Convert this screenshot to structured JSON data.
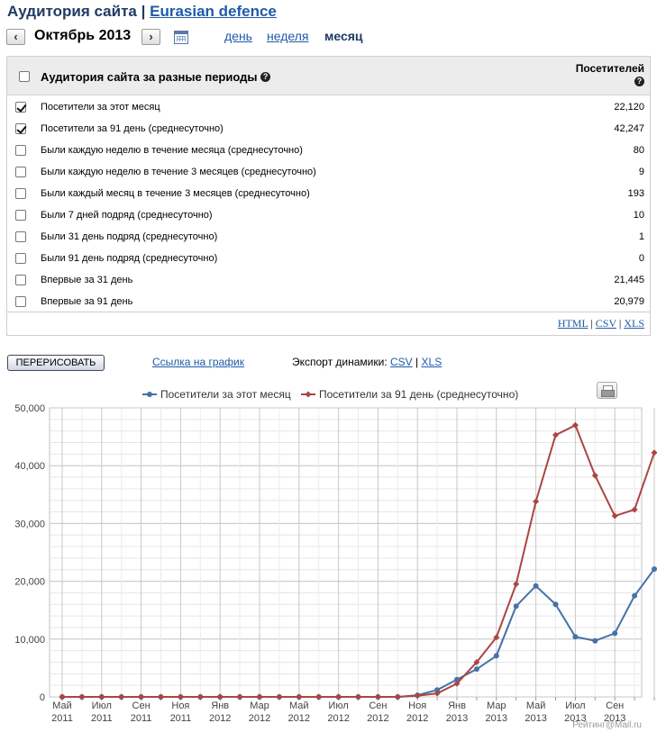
{
  "header": {
    "title_prefix": "Аудитория сайта",
    "separator": "|",
    "site_name": "Eurasian defence"
  },
  "nav": {
    "prev": "‹",
    "period": "Октябрь 2013",
    "next": "›",
    "granularity": [
      {
        "label": "день",
        "active": false
      },
      {
        "label": "неделя",
        "active": false
      },
      {
        "label": "месяц",
        "active": true
      }
    ]
  },
  "table": {
    "header_label": "Аудитория сайта за разные периоды",
    "header_value_label": "Посетителей",
    "help_glyph": "?",
    "rows": [
      {
        "label": "Посетители за этот месяц",
        "value": "22,120",
        "checked": true
      },
      {
        "label": "Посетители за 91 день (среднесуточно)",
        "value": "42,247",
        "checked": true
      },
      {
        "label": "Были каждую неделю в течение месяца (среднесуточно)",
        "value": "80",
        "checked": false
      },
      {
        "label": "Были каждую неделю в течение 3 месяцев (среднесуточно)",
        "value": "9",
        "checked": false
      },
      {
        "label": "Были каждый месяц в течение 3 месяцев (среднесуточно)",
        "value": "193",
        "checked": false
      },
      {
        "label": "Были 7 дней подряд (среднесуточно)",
        "value": "10",
        "checked": false
      },
      {
        "label": "Были 31 день подряд (среднесуточно)",
        "value": "1",
        "checked": false
      },
      {
        "label": "Были 91 день подряд (среднесуточно)",
        "value": "0",
        "checked": false
      },
      {
        "label": "Впервые за 31 день",
        "value": "21,445",
        "checked": false
      },
      {
        "label": "Впервые за 91 день",
        "value": "20,979",
        "checked": false
      }
    ],
    "exports": {
      "html": "HTML",
      "csv": "CSV",
      "xls": "XLS",
      "sep": "|"
    }
  },
  "controls": {
    "redraw_label": "ПЕРЕРИСОВАТЬ",
    "graph_link": "Ссылка на график",
    "dynamics_label": "Экспорт динамики:",
    "csv": "CSV",
    "xls": "XLS",
    "sep": "|"
  },
  "chart_data": {
    "type": "line",
    "title": "",
    "xlabel": "",
    "ylabel": "",
    "ylim": [
      0,
      50000
    ],
    "yticks": [
      "0",
      "10,000",
      "20,000",
      "30,000",
      "40,000",
      "50,000"
    ],
    "ytick_values": [
      0,
      10000,
      20000,
      30000,
      40000,
      50000
    ],
    "x_tick_labels": [
      [
        "Май",
        "2011"
      ],
      [
        "Июл",
        "2011"
      ],
      [
        "Сен",
        "2011"
      ],
      [
        "Ноя",
        "2011"
      ],
      [
        "Янв",
        "2012"
      ],
      [
        "Мар",
        "2012"
      ],
      [
        "Май",
        "2012"
      ],
      [
        "Июл",
        "2012"
      ],
      [
        "Сен",
        "2012"
      ],
      [
        "Ноя",
        "2012"
      ],
      [
        "Янв",
        "2013"
      ],
      [
        "Мар",
        "2013"
      ],
      [
        "Май",
        "2013"
      ],
      [
        "Июл",
        "2013"
      ],
      [
        "Сен",
        "2013"
      ]
    ],
    "x_first_month": "2011-05",
    "x_last_month": "2013-10",
    "legend_position": "top",
    "grid": true,
    "series": [
      {
        "name": "Посетители за этот месяц",
        "color": "#4572a7",
        "values": [
          0,
          0,
          0,
          0,
          0,
          0,
          0,
          0,
          0,
          0,
          0,
          0,
          0,
          0,
          0,
          0,
          0,
          0,
          300,
          1200,
          3000,
          4800,
          7100,
          15700,
          19200,
          16000,
          10400,
          9700,
          11000,
          17500,
          22120
        ]
      },
      {
        "name": "Посетители за 91 день (среднесуточно)",
        "color": "#aa4643",
        "values": [
          0,
          0,
          0,
          0,
          0,
          0,
          0,
          0,
          0,
          0,
          0,
          0,
          0,
          0,
          0,
          0,
          0,
          0,
          200,
          600,
          2300,
          6000,
          10300,
          19500,
          33800,
          45300,
          47000,
          38300,
          31300,
          32400,
          42247
        ]
      }
    ]
  },
  "footer": {
    "credit": "Рейтинг@Mail.ru"
  }
}
